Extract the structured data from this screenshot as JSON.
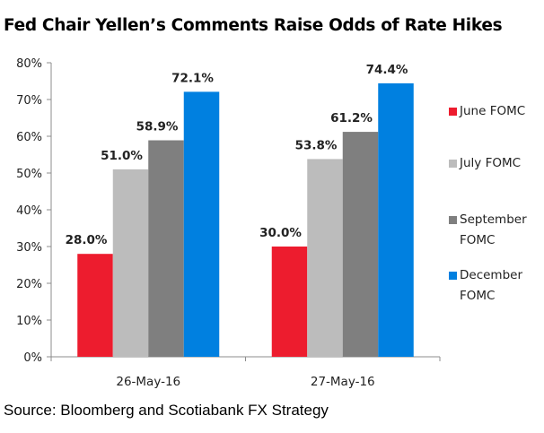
{
  "chart_data": {
    "type": "bar",
    "title": "Fed Chair Yellen’s Comments Raise Odds of Rate Hikes",
    "xlabel": "",
    "ylabel": "",
    "ylim": [
      0,
      80
    ],
    "yticks": [
      "0%",
      "10%",
      "20%",
      "30%",
      "40%",
      "50%",
      "60%",
      "70%",
      "80%"
    ],
    "categories": [
      "26-May-16",
      "27-May-16"
    ],
    "series": [
      {
        "name": "June FOMC",
        "values": [
          28.0,
          30.0
        ],
        "labels": [
          "28.0%",
          "30.0%"
        ],
        "color": "#ed1c2e"
      },
      {
        "name": "July FOMC",
        "values": [
          51.0,
          53.8
        ],
        "labels": [
          "51.0%",
          "53.8%"
        ],
        "color": "#bcbcbc"
      },
      {
        "name": "September FOMC",
        "values": [
          58.9,
          61.2
        ],
        "labels": [
          "58.9%",
          "61.2%"
        ],
        "color": "#7f7f7f"
      },
      {
        "name": "December FOMC",
        "values": [
          72.1,
          74.4
        ],
        "labels": [
          "72.1%",
          "74.4%"
        ],
        "color": "#0080e0"
      }
    ],
    "legend": {
      "position": "right",
      "entries": [
        "June FOMC",
        "July FOMC",
        "September FOMC",
        "December FOMC"
      ]
    },
    "grid": false,
    "source": "Source: Bloomberg and Scotiabank FX Strategy"
  }
}
